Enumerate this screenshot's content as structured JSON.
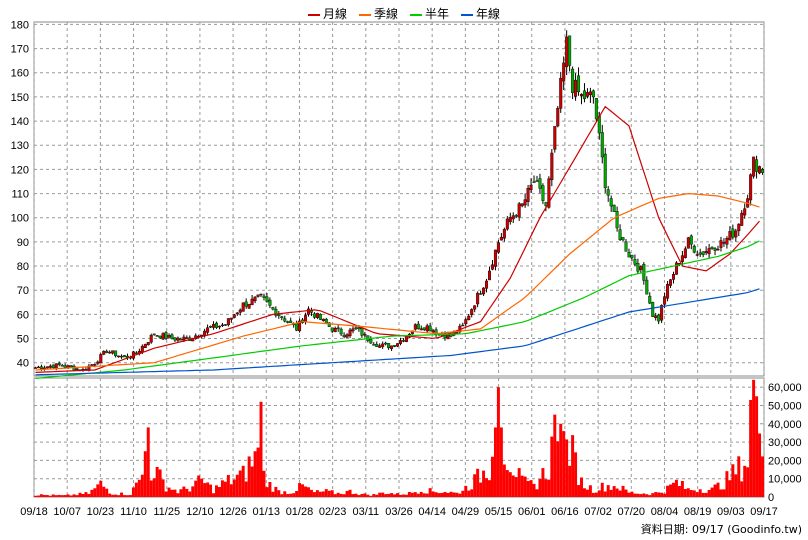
{
  "chart_data": {
    "type": "candlestick",
    "legend": [
      {
        "name": "月線",
        "color": "#cc0000"
      },
      {
        "name": "季線",
        "color": "#ff6600"
      },
      {
        "name": "半年",
        "color": "#00cc00"
      },
      {
        "name": "年線",
        "color": "#0055cc"
      }
    ],
    "price_axis": {
      "ticks": [
        40,
        50,
        60,
        70,
        80,
        90,
        100,
        110,
        120,
        130,
        140,
        150,
        160,
        170,
        180
      ],
      "ylim": [
        34.5,
        181
      ]
    },
    "volume_axis": {
      "ticks": [
        "0",
        "10,000",
        "20,000",
        "30,000",
        "40,000",
        "50,000",
        "60,000"
      ],
      "ylim": [
        0,
        65000
      ]
    },
    "x_labels": [
      "09/18",
      "10/07",
      "10/23",
      "11/10",
      "11/25",
      "12/10",
      "12/26",
      "01/13",
      "01/28",
      "02/23",
      "03/11",
      "03/26",
      "04/14",
      "04/29",
      "05/15",
      "06/01",
      "06/16",
      "07/02",
      "07/20",
      "08/04",
      "08/19",
      "09/03",
      "09/17"
    ],
    "grid": true,
    "up_color": "#cc0000",
    "down_color": "#00aa00",
    "volume_color": "#ff0000",
    "price_anchors": [
      [
        0,
        38
      ],
      [
        8,
        39
      ],
      [
        12,
        38
      ],
      [
        16,
        37
      ],
      [
        20,
        40
      ],
      [
        24,
        45
      ],
      [
        30,
        42
      ],
      [
        34,
        44
      ],
      [
        40,
        52
      ],
      [
        46,
        50
      ],
      [
        52,
        50
      ],
      [
        58,
        54
      ],
      [
        64,
        56
      ],
      [
        70,
        64
      ],
      [
        76,
        67
      ],
      [
        80,
        62
      ],
      [
        84,
        58
      ],
      [
        88,
        54
      ],
      [
        92,
        62
      ],
      [
        96,
        58
      ],
      [
        100,
        54
      ],
      [
        104,
        52
      ],
      [
        108,
        54
      ],
      [
        112,
        50
      ],
      [
        116,
        47
      ],
      [
        120,
        47
      ],
      [
        124,
        50
      ],
      [
        128,
        55
      ],
      [
        132,
        55
      ],
      [
        136,
        52
      ],
      [
        140,
        51
      ],
      [
        144,
        55
      ],
      [
        148,
        65
      ],
      [
        152,
        75
      ],
      [
        156,
        90
      ],
      [
        160,
        100
      ],
      [
        164,
        105
      ],
      [
        168,
        115
      ],
      [
        172,
        105
      ],
      [
        176,
        145
      ],
      [
        179,
        172
      ],
      [
        181,
        155
      ],
      [
        184,
        150
      ],
      [
        188,
        150
      ],
      [
        192,
        115
      ],
      [
        196,
        95
      ],
      [
        200,
        85
      ],
      [
        204,
        78
      ],
      [
        206,
        70
      ],
      [
        208,
        60
      ],
      [
        210,
        58
      ],
      [
        212,
        68
      ],
      [
        216,
        80
      ],
      [
        220,
        90
      ],
      [
        224,
        85
      ],
      [
        228,
        88
      ],
      [
        232,
        90
      ],
      [
        236,
        95
      ],
      [
        240,
        110
      ],
      [
        242,
        123
      ],
      [
        245,
        120
      ]
    ],
    "volume_anchors": [
      [
        0,
        1200
      ],
      [
        10,
        800
      ],
      [
        18,
        2000
      ],
      [
        22,
        7000
      ],
      [
        26,
        2000
      ],
      [
        32,
        1500
      ],
      [
        36,
        12000
      ],
      [
        40,
        15000
      ],
      [
        44,
        6000
      ],
      [
        48,
        3000
      ],
      [
        52,
        5000
      ],
      [
        56,
        9000
      ],
      [
        60,
        4000
      ],
      [
        64,
        8000
      ],
      [
        70,
        12000
      ],
      [
        74,
        22000
      ],
      [
        78,
        8000
      ],
      [
        82,
        3000
      ],
      [
        86,
        2500
      ],
      [
        90,
        6000
      ],
      [
        94,
        2500
      ],
      [
        98,
        3000
      ],
      [
        102,
        2000
      ],
      [
        106,
        3000
      ],
      [
        110,
        1500
      ],
      [
        114,
        1200
      ],
      [
        118,
        2500
      ],
      [
        122,
        1500
      ],
      [
        126,
        2000
      ],
      [
        130,
        4000
      ],
      [
        134,
        3000
      ],
      [
        138,
        3000
      ],
      [
        142,
        2000
      ],
      [
        146,
        6000
      ],
      [
        150,
        12000
      ],
      [
        154,
        18000
      ],
      [
        157,
        28000
      ],
      [
        160,
        20000
      ],
      [
        164,
        8000
      ],
      [
        168,
        6000
      ],
      [
        172,
        14000
      ],
      [
        176,
        24000
      ],
      [
        180,
        28000
      ],
      [
        184,
        8000
      ],
      [
        188,
        4000
      ],
      [
        192,
        6000
      ],
      [
        196,
        6000
      ],
      [
        200,
        2500
      ],
      [
        204,
        2000
      ],
      [
        208,
        1800
      ],
      [
        212,
        3500
      ],
      [
        216,
        8000
      ],
      [
        220,
        4000
      ],
      [
        224,
        4500
      ],
      [
        228,
        4000
      ],
      [
        232,
        8000
      ],
      [
        236,
        14000
      ],
      [
        240,
        20000
      ],
      [
        242,
        48000
      ],
      [
        244,
        30000
      ],
      [
        245,
        22000
      ]
    ],
    "volume_spikes": [
      [
        37,
        25000
      ],
      [
        38,
        38000
      ],
      [
        75,
        27000
      ],
      [
        76,
        52000
      ],
      [
        154,
        22000
      ],
      [
        155,
        38000
      ],
      [
        156,
        60000
      ],
      [
        157,
        38000
      ],
      [
        174,
        33000
      ],
      [
        175,
        45000
      ],
      [
        177,
        40000
      ],
      [
        178,
        36000
      ],
      [
        241,
        53000
      ],
      [
        242,
        64000
      ],
      [
        243,
        55000
      ]
    ],
    "ma_series": [
      {
        "name": "月線",
        "color": "#cc0000",
        "points": [
          [
            0,
            36
          ],
          [
            20,
            37
          ],
          [
            40,
            46
          ],
          [
            60,
            52
          ],
          [
            80,
            60
          ],
          [
            95,
            62
          ],
          [
            115,
            52
          ],
          [
            135,
            50
          ],
          [
            150,
            57
          ],
          [
            160,
            75
          ],
          [
            170,
            100
          ],
          [
            182,
            125
          ],
          [
            192,
            146
          ],
          [
            200,
            138
          ],
          [
            210,
            100
          ],
          [
            218,
            80
          ],
          [
            226,
            78
          ],
          [
            234,
            85
          ],
          [
            240,
            93
          ],
          [
            245,
            100
          ]
        ]
      },
      {
        "name": "季線",
        "color": "#ff6600",
        "points": [
          [
            0,
            37
          ],
          [
            40,
            40
          ],
          [
            70,
            51
          ],
          [
            90,
            57
          ],
          [
            110,
            55
          ],
          [
            135,
            52
          ],
          [
            150,
            54
          ],
          [
            165,
            67
          ],
          [
            180,
            85
          ],
          [
            195,
            100
          ],
          [
            210,
            108
          ],
          [
            220,
            110
          ],
          [
            230,
            109
          ],
          [
            240,
            106
          ],
          [
            245,
            104
          ]
        ]
      },
      {
        "name": "半年",
        "color": "#00cc00",
        "points": [
          [
            0,
            33.5
          ],
          [
            30,
            37
          ],
          [
            60,
            42
          ],
          [
            90,
            47
          ],
          [
            120,
            51
          ],
          [
            145,
            52
          ],
          [
            165,
            57
          ],
          [
            185,
            67
          ],
          [
            200,
            76
          ],
          [
            215,
            80
          ],
          [
            230,
            84
          ],
          [
            240,
            88
          ],
          [
            245,
            91
          ]
        ]
      },
      {
        "name": "年線",
        "color": "#0055cc",
        "points": [
          [
            0,
            35
          ],
          [
            60,
            37
          ],
          [
            100,
            40
          ],
          [
            140,
            43
          ],
          [
            165,
            47
          ],
          [
            185,
            55
          ],
          [
            200,
            61
          ],
          [
            215,
            64
          ],
          [
            230,
            67
          ],
          [
            240,
            69
          ],
          [
            245,
            71
          ]
        ]
      }
    ]
  },
  "source_text": "資料日期: 09/17  (Goodinfo.tw)"
}
